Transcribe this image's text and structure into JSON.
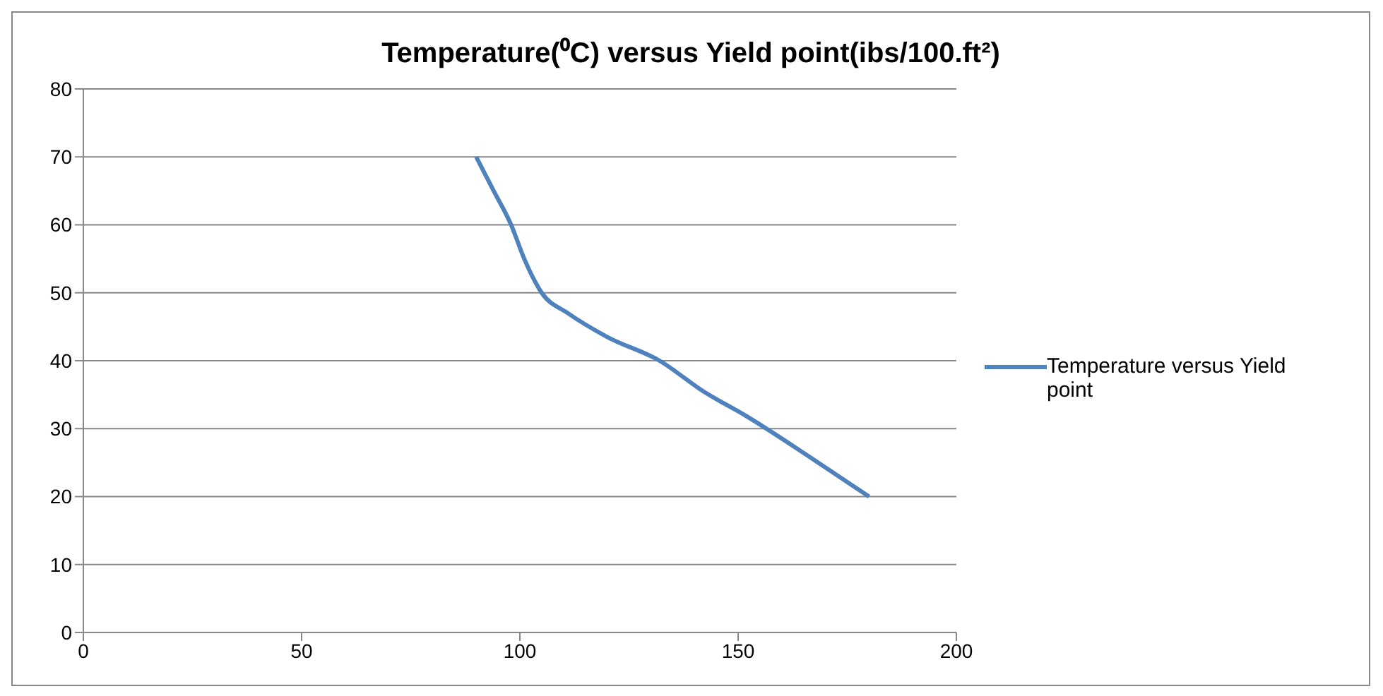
{
  "chart_data": {
    "type": "line",
    "title": "Temperature(⁰C) versus Yield point(ibs/100.ft²)",
    "series": [
      {
        "name": "Temperature versus Yield point",
        "color": "#4f81bd",
        "x": [
          90,
          94,
          98,
          101,
          105,
          111,
          120,
          132,
          142,
          152,
          166,
          180
        ],
        "values": [
          70,
          65,
          60,
          55,
          50,
          47,
          43.5,
          40,
          35.5,
          31.8,
          26,
          20
        ]
      }
    ],
    "xlim": [
      0,
      200
    ],
    "xticks": [
      0,
      50,
      100,
      150,
      200
    ],
    "ylim": [
      0,
      80
    ],
    "yticks": [
      0,
      10,
      20,
      30,
      40,
      50,
      60,
      70,
      80
    ],
    "grid": "y",
    "legend": "right",
    "marker": "none",
    "line_style": "solid"
  }
}
